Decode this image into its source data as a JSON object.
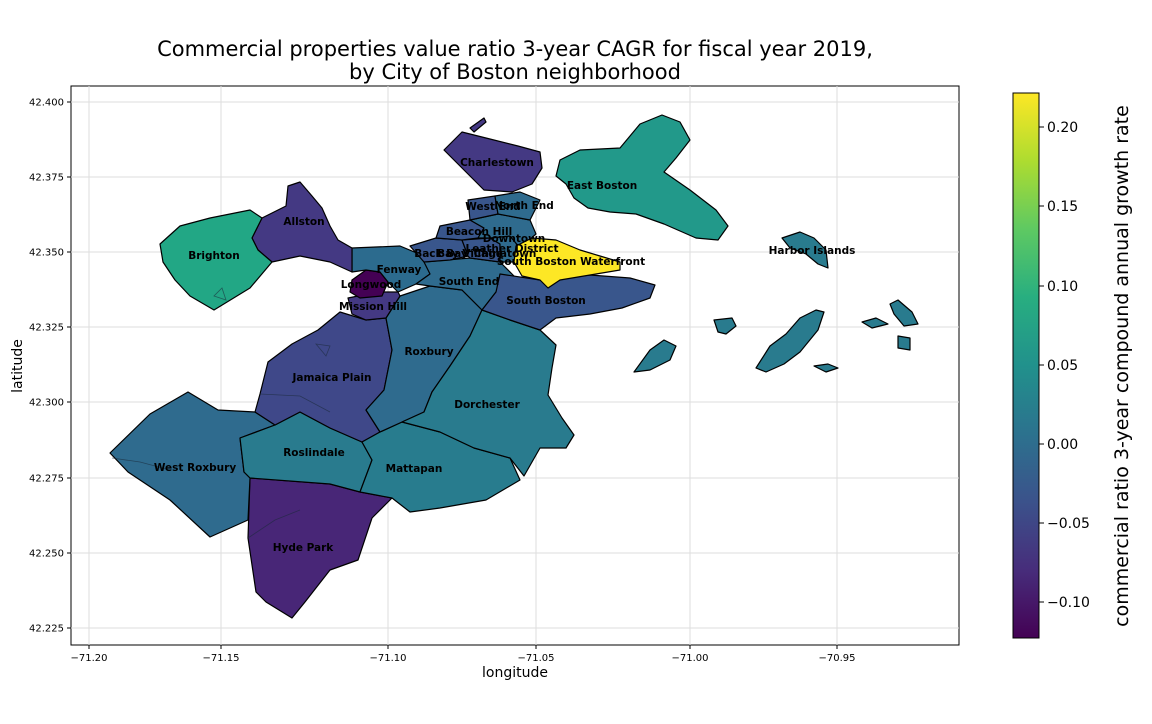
{
  "title_line1": "Commercial properties value ratio 3-year CAGR for fiscal year 2019,",
  "title_line2": "by City of Boston neighborhood",
  "xlabel": "longitude",
  "ylabel": "latitude",
  "colorbar_label": "commercial ratio 3-year compound annual growth rate",
  "x_ticks": [
    "−71.20",
    "−71.15",
    "−71.10",
    "−71.05",
    "−71.00",
    "−70.95"
  ],
  "y_ticks": [
    "42.400",
    "42.375",
    "42.350",
    "42.325",
    "42.300",
    "42.275",
    "42.250",
    "42.225"
  ],
  "cb_ticks": [
    "0.20",
    "0.15",
    "0.10",
    "0.05",
    "0.00",
    "−0.05",
    "−0.10"
  ],
  "colors": {
    "yellow": "#fde725",
    "green": "#22a785",
    "teal_light": "#21918c",
    "teal": "#297b8e",
    "steel": "#2f6b8e",
    "blue": "#39568c",
    "indigo": "#443983",
    "purple": "#482677",
    "dark_purple": "#440154"
  },
  "neighborhoods": [
    {
      "name": "Charlestown"
    },
    {
      "name": "East Boston"
    },
    {
      "name": "West End"
    },
    {
      "name": "North End"
    },
    {
      "name": "Allston"
    },
    {
      "name": "Beacon Hill"
    },
    {
      "name": "Downtown"
    },
    {
      "name": "Brighton"
    },
    {
      "name": "Leather District"
    },
    {
      "name": "Back Bay"
    },
    {
      "name": "Bay Village"
    },
    {
      "name": "Chinatown"
    },
    {
      "name": "Harbor Islands"
    },
    {
      "name": "Fenway"
    },
    {
      "name": "South Boston Waterfront"
    },
    {
      "name": "Longwood"
    },
    {
      "name": "South End"
    },
    {
      "name": "South Boston"
    },
    {
      "name": "Mission Hill"
    },
    {
      "name": "Roxbury"
    },
    {
      "name": "Jamaica Plain"
    },
    {
      "name": "Dorchester"
    },
    {
      "name": "Roslindale"
    },
    {
      "name": "West Roxbury"
    },
    {
      "name": "Mattapan"
    },
    {
      "name": "Hyde Park"
    }
  ],
  "chart_data": {
    "type": "choropleth",
    "title": "Commercial properties value ratio 3-year CAGR for fiscal year 2019, by City of Boston neighborhood",
    "xlabel": "longitude",
    "ylabel": "latitude",
    "xlim": [
      -71.205,
      -70.92
    ],
    "ylim": [
      42.219,
      42.406
    ],
    "colorbar": {
      "label": "commercial ratio 3-year compound annual growth rate",
      "range": [
        -0.123,
        0.222
      ],
      "colormap": "viridis"
    },
    "grid": true,
    "values": {
      "South Boston Waterfront": 0.222,
      "Brighton": 0.07,
      "East Boston": 0.06,
      "Harbor Islands": 0.04,
      "Dorchester": 0.04,
      "Roslindale": 0.04,
      "Mattapan": 0.03,
      "West Roxbury": 0.01,
      "Roxbury": 0.0,
      "South End": 0.0,
      "South Boston": -0.03,
      "Fenway": -0.01,
      "Jamaica Plain": -0.045,
      "Allston": -0.06,
      "Charlestown": -0.06,
      "Mission Hill": -0.08,
      "Hyde Park": -0.09,
      "Longwood": -0.123
    }
  }
}
